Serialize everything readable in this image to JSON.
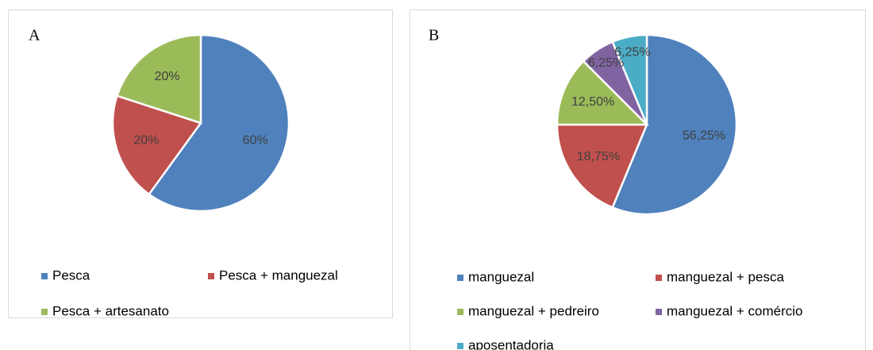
{
  "chart_data": [
    {
      "type": "pie",
      "title": "A",
      "categories": [
        "Pesca",
        "Pesca + manguezal",
        "Pesca + artesanato"
      ],
      "values": [
        60,
        20,
        20
      ],
      "value_labels": [
        "60%",
        "20%",
        "20%"
      ],
      "colors": [
        "#4f81bd",
        "#c0504d",
        "#9bbb59"
      ]
    },
    {
      "type": "pie",
      "title": "B",
      "categories": [
        "manguezal",
        "manguezal + pesca",
        "manguezal + pedreiro",
        "manguezal + comércio",
        "aposentadoria"
      ],
      "values": [
        56.25,
        18.75,
        12.5,
        6.25,
        6.25
      ],
      "value_labels": [
        "56,25%",
        "18,75%",
        "12,50%",
        "6,25%",
        "6,25%"
      ],
      "colors": [
        "#4f81bd",
        "#c0504d",
        "#9bbb59",
        "#8064a2",
        "#4bacc6"
      ]
    }
  ]
}
